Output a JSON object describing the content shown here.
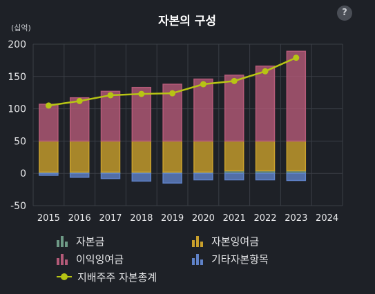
{
  "title": "자본의 구성",
  "help_label": "?",
  "unit_label": "(십억)",
  "colors": {
    "background": "#1e2127",
    "grid": "#3a3e46",
    "axis_text": "#e8e9eb",
    "capital_stock": "#6e9a86",
    "capital_surplus": "#c9a02c",
    "retained_earnings": "#b45a78",
    "other_capital": "#5f82c8",
    "controlling_equity": "#b7c414"
  },
  "legend": [
    {
      "key": "capital_stock",
      "label": "자본금",
      "icon": "bar-chart-icon",
      "color": "#6e9a86"
    },
    {
      "key": "capital_surplus",
      "label": "자본잉여금",
      "icon": "bar-chart-icon",
      "color": "#c9a02c"
    },
    {
      "key": "retained_earnings",
      "label": "이익잉여금",
      "icon": "bar-chart-icon",
      "color": "#b45a78"
    },
    {
      "key": "other_capital",
      "label": "기타자본항목",
      "icon": "bar-chart-icon",
      "color": "#5f82c8"
    },
    {
      "key": "controlling_equity",
      "label": "지배주주 자본총계",
      "icon": "line-dot-icon",
      "color": "#b7c414"
    }
  ],
  "chart_data": {
    "type": "bar",
    "stacked": true,
    "title": "자본의 구성",
    "ylabel": "(십억)",
    "ylim": [
      -50,
      200
    ],
    "yticks": [
      -50,
      0,
      50,
      100,
      150,
      200
    ],
    "grid": true,
    "legend_position": "bottom",
    "categories": [
      "2015",
      "2016",
      "2017",
      "2018",
      "2019",
      "2020",
      "2021",
      "2022",
      "2023",
      "2024"
    ],
    "series": [
      {
        "name": "자본금",
        "type": "bar",
        "values": [
          2,
          2,
          2,
          2,
          2,
          2,
          4,
          4,
          4,
          null
        ]
      },
      {
        "name": "자본잉여금",
        "type": "bar",
        "values": [
          48,
          48,
          48,
          48,
          48,
          48,
          46,
          46,
          46,
          null
        ]
      },
      {
        "name": "이익잉여금",
        "type": "bar",
        "values": [
          57,
          67,
          77,
          83,
          88,
          96,
          102,
          116,
          139,
          null
        ]
      },
      {
        "name": "기타자본항목",
        "type": "bar",
        "values": [
          -3,
          -6,
          -8,
          -12,
          -15,
          -10,
          -10,
          -10,
          -11,
          null
        ]
      },
      {
        "name": "지배주주 자본총계",
        "type": "line",
        "values": [
          105,
          112,
          121,
          123,
          124,
          138,
          143,
          158,
          179,
          null
        ]
      }
    ]
  }
}
